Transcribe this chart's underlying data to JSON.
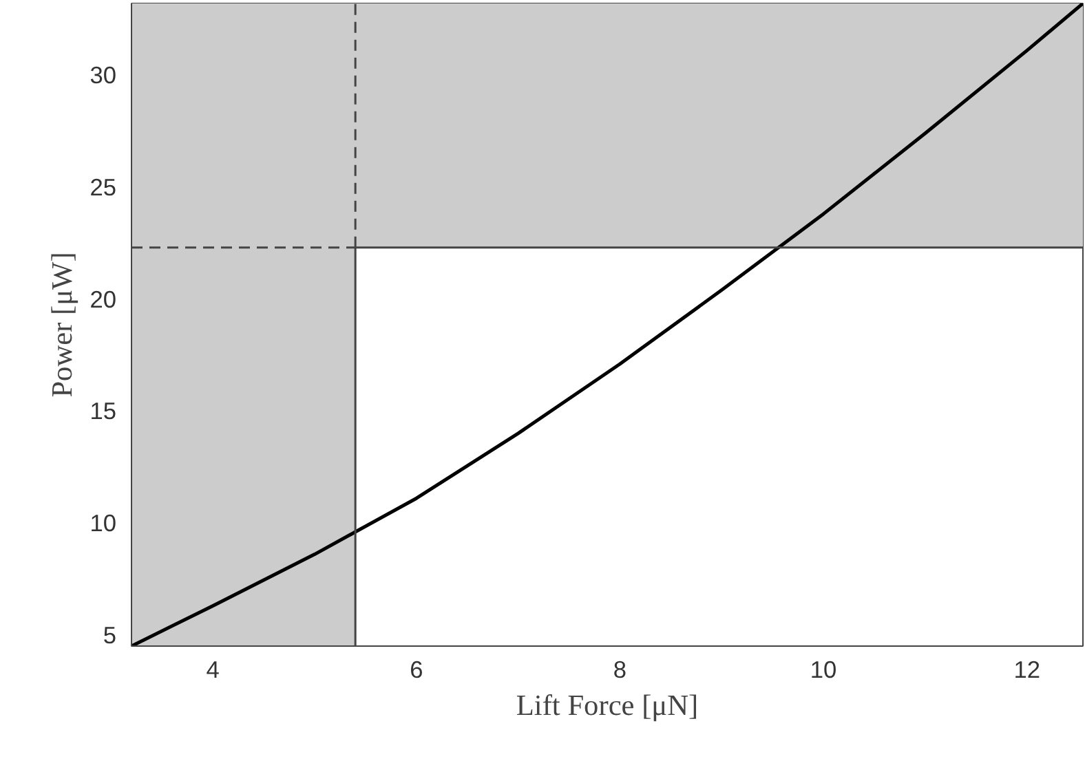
{
  "chart_data": {
    "type": "line",
    "xlabel": "Lift Force [μN]",
    "ylabel": "Power [μW]",
    "x": [
      3.2,
      4,
      5,
      5.4,
      6,
      7,
      8,
      9,
      10,
      11,
      12,
      12.55
    ],
    "series": [
      {
        "color": "#000000",
        "values": [
          4.5,
          6.3,
          8.6,
          9.6,
          11.1,
          14.0,
          17.1,
          20.4,
          23.8,
          27.4,
          31.1,
          33.2
        ]
      },
      {
        "color": "#444444",
        "x": [
          5.4,
          5.4
        ],
        "values": [
          4.5,
          22.3
        ],
        "line_style": "solid"
      },
      {
        "color": "#444444",
        "x": [
          5.4,
          5.4
        ],
        "values": [
          22.3,
          33.2
        ],
        "line_style": "dashed"
      },
      {
        "color": "#444444",
        "x": [
          3.2,
          5.4
        ],
        "values": [
          22.3,
          22.3
        ],
        "line_style": "dashed"
      },
      {
        "color": "#444444",
        "x": [
          5.4,
          12.55
        ],
        "values": [
          22.3,
          22.3
        ],
        "line_style": "solid"
      }
    ],
    "xlim": [
      3.2,
      12.55
    ],
    "ylim": [
      4.5,
      33.2
    ],
    "xticks": [
      4,
      6,
      8,
      10,
      12
    ],
    "yticks": [
      5,
      10,
      15,
      20,
      25,
      30
    ],
    "bands": [
      {
        "axis": "x",
        "from": 3.2,
        "to": 5.4,
        "color": "#cccccc"
      },
      {
        "axis": "y",
        "from": 22.3,
        "to": 33.2,
        "color": "#cccccc"
      }
    ],
    "grid": false,
    "marker": "none",
    "line_style": "solid"
  }
}
